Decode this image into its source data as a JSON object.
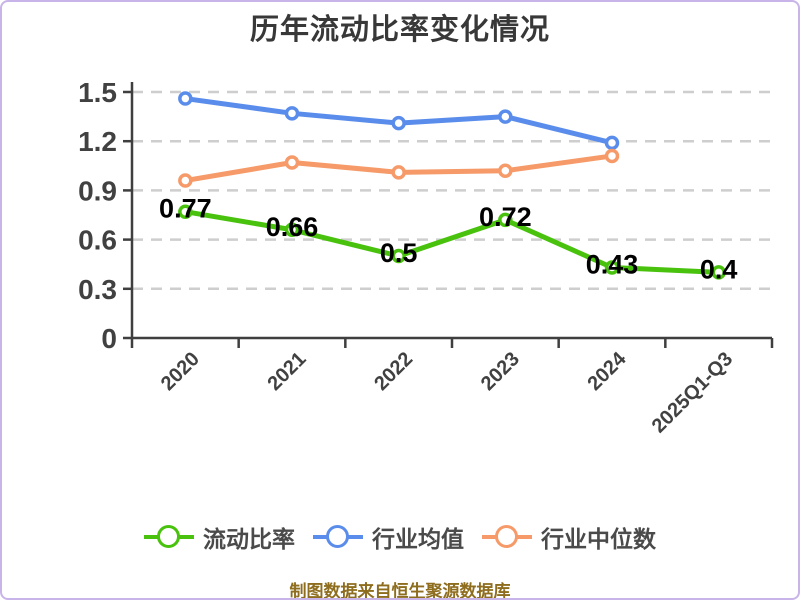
{
  "page": {
    "background": "#ffffff",
    "border_color": "#c9b4e9"
  },
  "chart_data": {
    "type": "line",
    "title": "历年流动比率变化情况",
    "categories": [
      "2020",
      "2021",
      "2022",
      "2023",
      "2024",
      "2025Q1-Q3"
    ],
    "series": [
      {
        "id": "current-ratio",
        "name": "流动比率",
        "color": "#49c20e",
        "values": [
          0.77,
          0.66,
          0.5,
          0.72,
          0.43,
          0.4
        ],
        "labels": [
          "0.77",
          "0.66",
          "0.5",
          "0.72",
          "0.43",
          "0.4"
        ],
        "show_labels": true
      },
      {
        "id": "industry-average",
        "name": "行业均值",
        "color": "#5a8deb",
        "values": [
          1.46,
          1.37,
          1.31,
          1.35,
          1.19,
          null
        ],
        "show_labels": false
      },
      {
        "id": "industry-median",
        "name": "行业中位数",
        "color": "#f59a68",
        "values": [
          0.96,
          1.07,
          1.01,
          1.02,
          1.11,
          null
        ],
        "show_labels": false
      }
    ],
    "ylim": [
      0,
      1.5
    ],
    "yticks": [
      0,
      0.3,
      0.6,
      0.9,
      1.2,
      1.5
    ],
    "ytick_labels": [
      "0",
      "0.3",
      "0.6",
      "0.9",
      "1.2",
      "1.5"
    ],
    "grid": "horizontal-dashed",
    "legend_position": "bottom",
    "axis_color": "#3f3f3f",
    "grid_color": "#cecece",
    "value_label_color": "#000000"
  },
  "footer": {
    "source_note": "制图数据来自恒生聚源数据库"
  }
}
